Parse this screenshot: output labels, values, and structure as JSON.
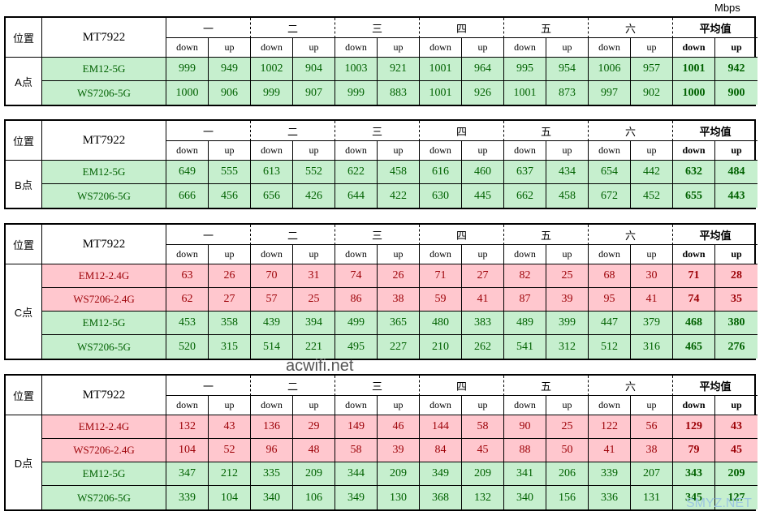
{
  "unit": "Mbps",
  "watermarks": [
    "acwifi.net",
    "SMYZ.NET"
  ],
  "tables": [
    {
      "position": "位置",
      "device": "MT7922",
      "location": "A点",
      "groups": [
        "一",
        "二",
        "三",
        "四",
        "五",
        "六",
        "平均值"
      ],
      "sub": [
        "down",
        "up"
      ],
      "rows": [
        {
          "name": "EM12-5G",
          "bg": "#c6efce",
          "color": "#006100",
          "values": [
            999,
            949,
            1002,
            904,
            1003,
            921,
            1001,
            964,
            995,
            954,
            1006,
            957,
            1001,
            942
          ]
        },
        {
          "name": "WS7206-5G",
          "bg": "#c6efce",
          "color": "#006100",
          "values": [
            1000,
            906,
            999,
            907,
            999,
            883,
            1001,
            926,
            1001,
            873,
            997,
            902,
            1000,
            900
          ]
        }
      ]
    },
    {
      "position": "位置",
      "device": "MT7922",
      "location": "B点",
      "groups": [
        "一",
        "二",
        "三",
        "四",
        "五",
        "六",
        "平均值"
      ],
      "sub": [
        "down",
        "up"
      ],
      "rows": [
        {
          "name": "EM12-5G",
          "bg": "#c6efce",
          "color": "#006100",
          "values": [
            649,
            555,
            613,
            552,
            622,
            458,
            616,
            460,
            637,
            434,
            654,
            442,
            632,
            484
          ]
        },
        {
          "name": "WS7206-5G",
          "bg": "#c6efce",
          "color": "#006100",
          "values": [
            666,
            456,
            656,
            426,
            644,
            422,
            630,
            445,
            662,
            458,
            672,
            452,
            655,
            443
          ]
        }
      ]
    },
    {
      "position": "位置",
      "device": "MT7922",
      "location": "C点",
      "groups": [
        "一",
        "二",
        "三",
        "四",
        "五",
        "六",
        "平均值"
      ],
      "sub": [
        "down",
        "up"
      ],
      "rows": [
        {
          "name": "EM12-2.4G",
          "bg": "#ffc7ce",
          "color": "#9c0006",
          "values": [
            63,
            26,
            70,
            31,
            74,
            26,
            71,
            27,
            82,
            25,
            68,
            30,
            71,
            28
          ]
        },
        {
          "name": "WS7206-2.4G",
          "bg": "#ffc7ce",
          "color": "#9c0006",
          "values": [
            62,
            27,
            57,
            25,
            86,
            38,
            59,
            41,
            87,
            39,
            95,
            41,
            74,
            35
          ]
        },
        {
          "name": "EM12-5G",
          "bg": "#c6efce",
          "color": "#006100",
          "values": [
            453,
            358,
            439,
            394,
            499,
            365,
            480,
            383,
            489,
            399,
            447,
            379,
            468,
            380
          ]
        },
        {
          "name": "WS7206-5G",
          "bg": "#c6efce",
          "color": "#006100",
          "values": [
            520,
            315,
            514,
            221,
            495,
            227,
            210,
            262,
            541,
            312,
            512,
            316,
            465,
            276
          ]
        }
      ]
    },
    {
      "position": "位置",
      "device": "MT7922",
      "location": "D点",
      "groups": [
        "一",
        "二",
        "三",
        "四",
        "五",
        "六",
        "平均值"
      ],
      "sub": [
        "down",
        "up"
      ],
      "rows": [
        {
          "name": "EM12-2.4G",
          "bg": "#ffc7ce",
          "color": "#9c0006",
          "values": [
            132,
            43,
            136,
            29,
            149,
            46,
            144,
            58,
            90,
            25,
            122,
            56,
            129,
            43
          ]
        },
        {
          "name": "WS7206-2.4G",
          "bg": "#ffc7ce",
          "color": "#9c0006",
          "values": [
            104,
            52,
            96,
            48,
            58,
            39,
            84,
            45,
            88,
            50,
            41,
            38,
            79,
            45
          ]
        },
        {
          "name": "EM12-5G",
          "bg": "#c6efce",
          "color": "#006100",
          "values": [
            347,
            212,
            335,
            209,
            344,
            209,
            349,
            209,
            341,
            206,
            339,
            207,
            343,
            209
          ]
        },
        {
          "name": "WS7206-5G",
          "bg": "#c6efce",
          "color": "#006100",
          "values": [
            339,
            104,
            340,
            106,
            349,
            130,
            368,
            132,
            340,
            156,
            336,
            131,
            345,
            127
          ]
        }
      ]
    }
  ]
}
